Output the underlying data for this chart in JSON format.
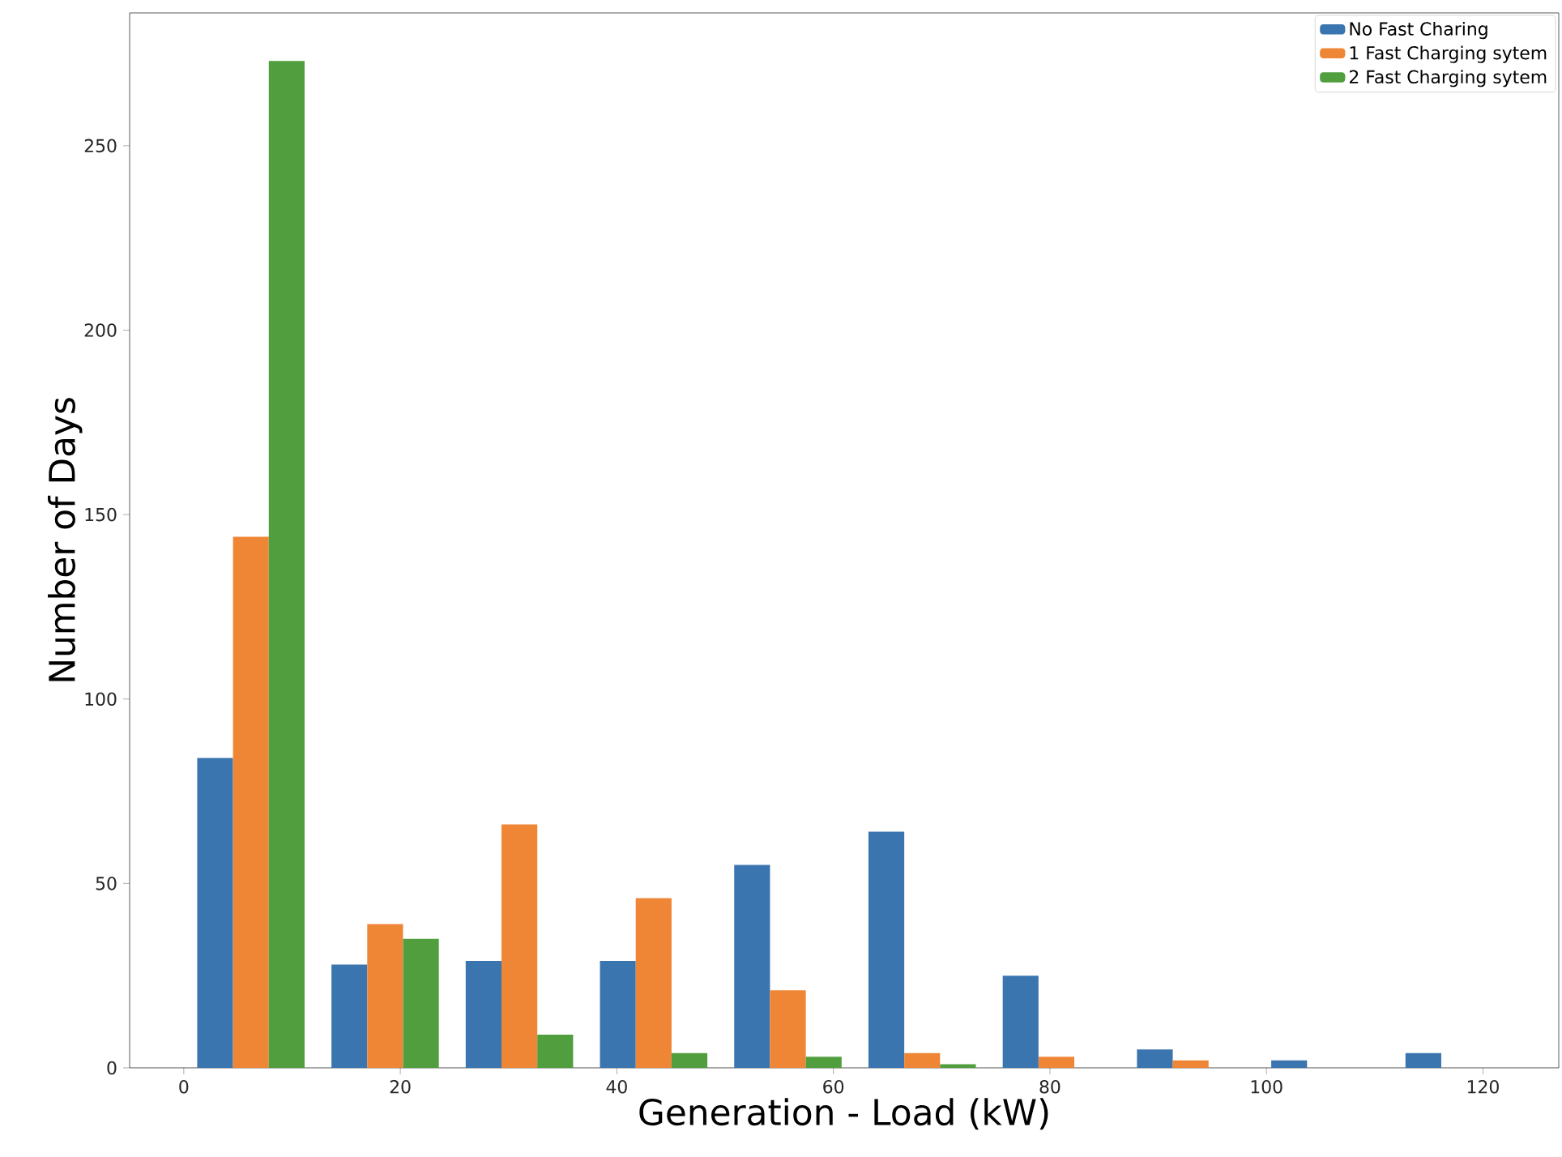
{
  "chart_data": {
    "type": "histogram",
    "xlabel": "Generation - Load (kW)",
    "ylabel": "Number of Days",
    "bins": [
      0,
      12.4,
      24.8,
      37.2,
      49.6,
      62,
      74.4,
      86.8,
      99.2,
      111.6,
      124
    ],
    "series": [
      {
        "name": "No Fast Charing",
        "color": "#3b75af",
        "values": [
          84,
          28,
          29,
          29,
          55,
          64,
          25,
          5,
          2,
          4
        ]
      },
      {
        "name": "1 Fast Charging sytem",
        "color": "#ef8636",
        "values": [
          144,
          39,
          66,
          46,
          21,
          4,
          3,
          2,
          0,
          0
        ]
      },
      {
        "name": "2 Fast Charging sytem",
        "color": "#519e3e",
        "values": [
          273,
          35,
          9,
          4,
          3,
          1,
          0,
          0,
          0,
          0
        ]
      }
    ],
    "xlim": [
      -5,
      127
    ],
    "ylim": [
      0,
      286
    ],
    "xticks": [
      0,
      20,
      40,
      60,
      80,
      100,
      120
    ],
    "yticks": [
      0,
      50,
      100,
      150,
      200,
      250
    ],
    "legend": "top right",
    "grid": false
  }
}
